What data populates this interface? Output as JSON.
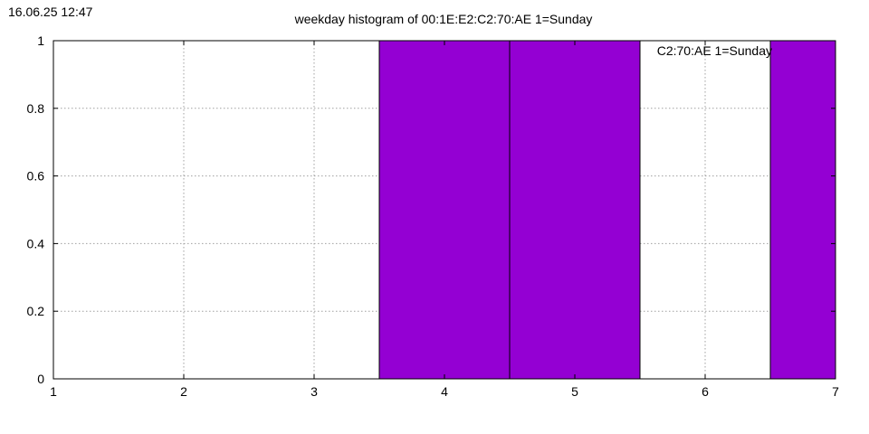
{
  "timestamp": "16.06.25 12:47",
  "chart_data": {
    "type": "bar",
    "title": "weekday histogram of 00:1E:E2:C2:70:AE 1=Sunday",
    "legend_label": "C2:70:AE 1=Sunday",
    "xlabel": "",
    "ylabel": "",
    "x": [
      1,
      2,
      3,
      4,
      5,
      6,
      7
    ],
    "values": [
      0,
      0,
      0,
      1,
      1,
      0,
      1
    ],
    "xlim": [
      1,
      7
    ],
    "ylim": [
      0,
      1
    ],
    "xticks": [
      1,
      2,
      3,
      4,
      5,
      6,
      7
    ],
    "yticks": [
      0,
      0.2,
      0.4,
      0.6,
      0.8,
      1
    ],
    "ytick_labels": [
      "0",
      "0.2",
      "0.4",
      "0.6",
      "0.8",
      "1"
    ],
    "grid": true,
    "bar_color": "#9400d3",
    "bar_outline_color": "#000000",
    "grid_color": "#a0a0a0"
  }
}
